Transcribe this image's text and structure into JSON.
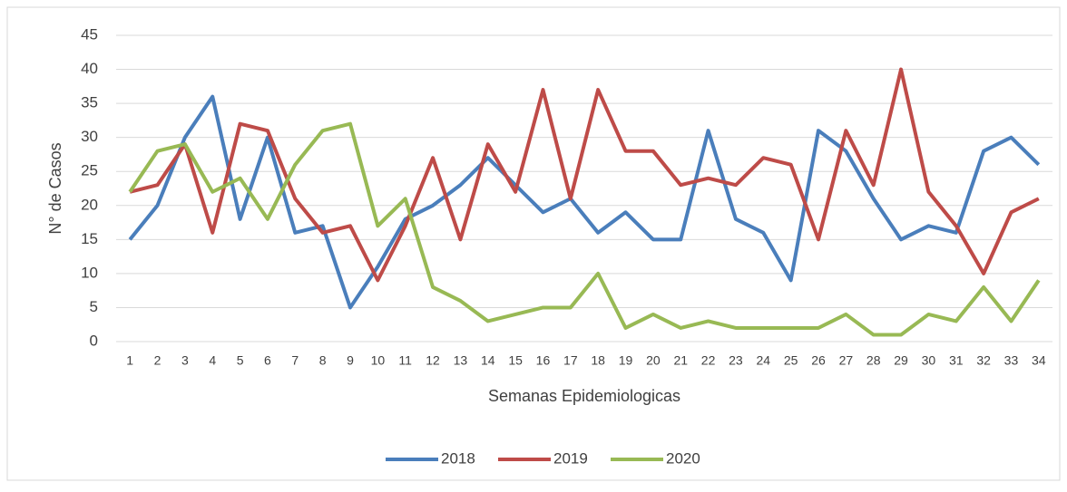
{
  "chart_data": {
    "type": "line",
    "x_label": "Semanas Epidemiologicas",
    "y_label": "N° de Casos",
    "categories": [
      "1",
      "2",
      "3",
      "4",
      "5",
      "6",
      "7",
      "8",
      "9",
      "10",
      "11",
      "12",
      "13",
      "14",
      "15",
      "16",
      "17",
      "18",
      "19",
      "20",
      "21",
      "22",
      "23",
      "24",
      "25",
      "26",
      "27",
      "28",
      "29",
      "30",
      "31",
      "32",
      "33",
      "34"
    ],
    "series": [
      {
        "name": "2018",
        "color": "#4a7ebb",
        "values": [
          15,
          20,
          30,
          36,
          18,
          30,
          16,
          17,
          5,
          11,
          18,
          20,
          23,
          27,
          23,
          19,
          21,
          16,
          19,
          15,
          15,
          31,
          18,
          16,
          9,
          31,
          28,
          21,
          15,
          17,
          16,
          28,
          30,
          26
        ]
      },
      {
        "name": "2019",
        "color": "#be4b48",
        "values": [
          22,
          23,
          29,
          16,
          32,
          31,
          21,
          16,
          17,
          9,
          17,
          27,
          15,
          29,
          22,
          37,
          21,
          37,
          28,
          28,
          23,
          24,
          23,
          27,
          26,
          15,
          31,
          23,
          40,
          22,
          17,
          10,
          19,
          21
        ]
      },
      {
        "name": "2020",
        "color": "#98b954",
        "values": [
          22,
          28,
          29,
          22,
          24,
          18,
          26,
          31,
          32,
          17,
          21,
          8,
          6,
          3,
          4,
          5,
          5,
          10,
          2,
          4,
          2,
          3,
          2,
          2,
          2,
          2,
          4,
          1,
          1,
          4,
          3,
          8,
          3,
          9
        ]
      }
    ],
    "ylim": [
      0,
      45
    ],
    "yticks": [
      0,
      5,
      10,
      15,
      20,
      25,
      30,
      35,
      40,
      45
    ],
    "grid": true,
    "legend": "bottom"
  }
}
